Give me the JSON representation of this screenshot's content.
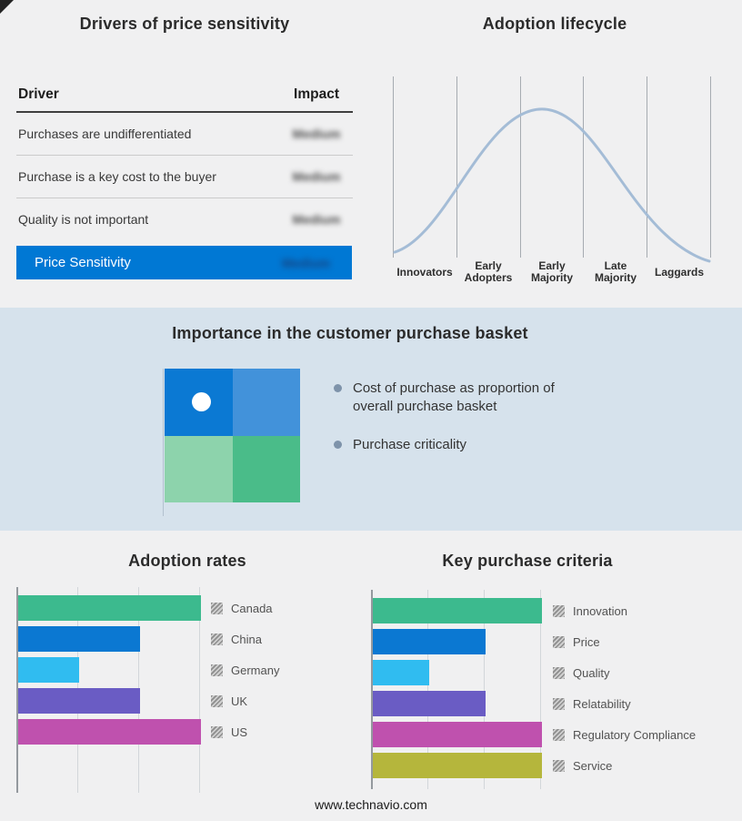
{
  "drivers_panel": {
    "title": "Drivers of price sensitivity",
    "header": {
      "driver": "Driver",
      "impact": "Impact"
    },
    "rows": [
      {
        "driver": "Purchases are undifferentiated",
        "impact": "Medium"
      },
      {
        "driver": "Purchase is a key cost to the buyer",
        "impact": "Medium"
      },
      {
        "driver": "Quality is not important",
        "impact": "Medium"
      }
    ],
    "summary": {
      "label": "Price Sensitivity",
      "impact": "Medium",
      "bar_color": "#0078d4"
    }
  },
  "basket_panel": {
    "title": "Importance in the customer purchase basket",
    "bullets": [
      "Cost of purchase as proportion of overall purchase basket",
      "Purchase criticality"
    ],
    "quadrants": {
      "top_left": "#0b79d3",
      "top_right": "#4292da",
      "bottom_left": "#8dd3ac",
      "bottom_right": "#4abc89"
    },
    "dot_color": "#ffffff",
    "band_color": "#d6e2ec"
  },
  "footer": {
    "text": "www.technavio.com"
  },
  "chart_data": [
    {
      "type": "line",
      "title": "Adoption lifecycle",
      "x": [
        "Innovators",
        "Early Adopters",
        "Early Majority",
        "Late Majority",
        "Laggards"
      ],
      "y_relative": [
        0.05,
        0.55,
        1.0,
        0.55,
        0.03
      ],
      "curve_color": "#a4bcd6",
      "note": "bell-shaped adoption curve peaking at Early Majority; vertical stage dividers; no numeric axes"
    },
    {
      "type": "bar",
      "orientation": "horizontal",
      "title": "Adoption rates",
      "categories": [
        "Canada",
        "China",
        "Germany",
        "UK",
        "US"
      ],
      "values": [
        3,
        2,
        1,
        2,
        3
      ],
      "colors": [
        "#3cba8e",
        "#0b78d2",
        "#30bcf0",
        "#6a5cc4",
        "#bf51ae"
      ],
      "value_note": "relative bar lengths in gridline units; no numeric axis labels shown",
      "legend_position": "right"
    },
    {
      "type": "bar",
      "orientation": "horizontal",
      "title": "Key purchase criteria",
      "categories": [
        "Innovation",
        "Price",
        "Quality",
        "Relatability",
        "Regulatory Compliance",
        "Service"
      ],
      "values": [
        3,
        2,
        1,
        2,
        3,
        3
      ],
      "colors": [
        "#3cba8e",
        "#0b78d2",
        "#30bcf0",
        "#6a5cc4",
        "#bf51ae",
        "#b5b63c"
      ],
      "value_note": "relative bar lengths in gridline units; no numeric axis labels shown",
      "legend_position": "right"
    }
  ]
}
